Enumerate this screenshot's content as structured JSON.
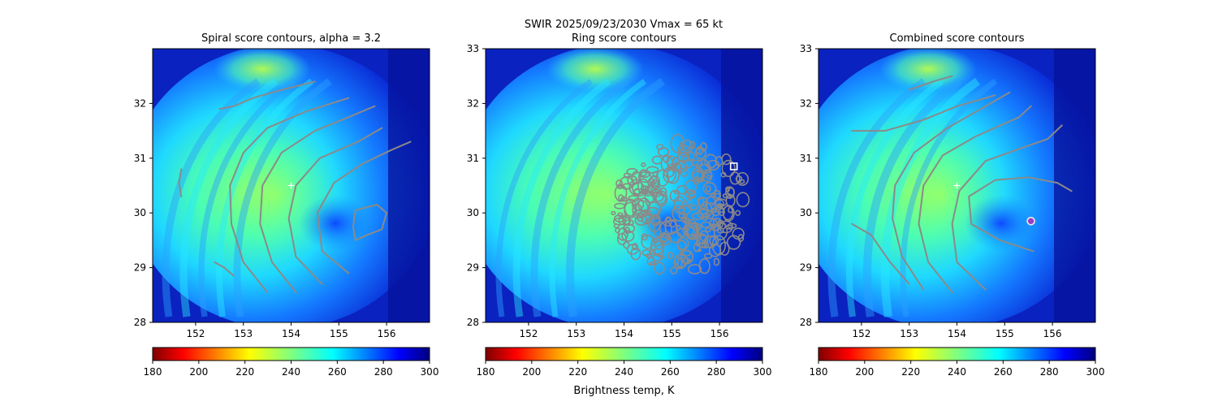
{
  "figure": {
    "suptitle": "SWIR  2025/09/23/2030    Vmax = 65 kt",
    "colorbar_label": "Brightness temp, K"
  },
  "chart_data": [
    {
      "type": "heatmap",
      "title": "Spiral score contours, alpha =  3.2",
      "xlim": [
        151.1,
        156.9
      ],
      "ylim": [
        28,
        33
      ],
      "xticks": [
        152,
        153,
        154,
        155,
        156
      ],
      "yticks": [
        28,
        29,
        30,
        31,
        32
      ],
      "colorbar": {
        "cmap": "jet_r",
        "range": [
          180,
          300
        ],
        "ticks": [
          180,
          200,
          220,
          240,
          260,
          280,
          300
        ]
      },
      "center_marker": {
        "symbol": "+",
        "lon": 154.0,
        "lat": 30.5
      },
      "contours": [
        [
          [
            153.5,
            28.55
          ],
          [
            153.0,
            29.1
          ],
          [
            152.75,
            29.8
          ],
          [
            152.72,
            30.5
          ],
          [
            153.0,
            31.1
          ],
          [
            153.5,
            31.55
          ],
          [
            154.3,
            31.85
          ],
          [
            155.2,
            32.1
          ]
        ],
        [
          [
            154.1,
            28.55
          ],
          [
            153.6,
            29.1
          ],
          [
            153.35,
            29.8
          ],
          [
            153.4,
            30.5
          ],
          [
            153.8,
            31.1
          ],
          [
            154.5,
            31.5
          ],
          [
            155.2,
            31.75
          ],
          [
            155.75,
            31.95
          ]
        ],
        [
          [
            154.65,
            28.7
          ],
          [
            154.1,
            29.2
          ],
          [
            153.95,
            29.9
          ],
          [
            154.1,
            30.5
          ],
          [
            154.6,
            31.0
          ],
          [
            155.4,
            31.3
          ],
          [
            155.9,
            31.55
          ]
        ],
        [
          [
            155.2,
            28.9
          ],
          [
            154.65,
            29.3
          ],
          [
            154.55,
            30.0
          ],
          [
            154.9,
            30.55
          ],
          [
            155.5,
            30.9
          ],
          [
            156.1,
            31.15
          ],
          [
            156.5,
            31.3
          ]
        ],
        [
          [
            155.35,
            29.5
          ],
          [
            155.6,
            29.6
          ],
          [
            155.9,
            29.7
          ],
          [
            156.0,
            30.0
          ],
          [
            155.8,
            30.15
          ],
          [
            155.35,
            30.05
          ],
          [
            155.3,
            29.75
          ],
          [
            155.35,
            29.5
          ]
        ],
        [
          [
            151.7,
            30.3
          ],
          [
            151.65,
            30.55
          ],
          [
            151.7,
            30.8
          ]
        ],
        [
          [
            152.4,
            29.1
          ],
          [
            152.6,
            29.0
          ],
          [
            152.8,
            28.85
          ]
        ],
        [
          [
            152.5,
            31.9
          ],
          [
            152.8,
            31.95
          ],
          [
            153.2,
            32.1
          ],
          [
            153.8,
            32.25
          ],
          [
            154.5,
            32.4
          ]
        ]
      ]
    },
    {
      "type": "heatmap",
      "title": "Ring score contours",
      "xlim": [
        151.1,
        156.9
      ],
      "ylim": [
        28,
        33
      ],
      "xticks": [
        152,
        153,
        154,
        155,
        156
      ],
      "yticks": [
        28,
        29,
        30,
        31,
        32,
        33
      ],
      "colorbar": {
        "cmap": "jet_r",
        "range": [
          180,
          300
        ],
        "ticks": [
          180,
          200,
          220,
          240,
          260,
          280,
          300
        ]
      },
      "ring_region": {
        "center_lon": 155.2,
        "center_lat": 30.1,
        "radius_lon": 1.45,
        "radius_lat": 1.2
      },
      "max_marker": {
        "symbol": "square",
        "lon": 156.3,
        "lat": 30.85
      }
    },
    {
      "type": "heatmap",
      "title": "Combined score contours",
      "xlim": [
        151.1,
        156.9
      ],
      "ylim": [
        28,
        33
      ],
      "xticks": [
        152,
        153,
        154,
        155,
        156
      ],
      "yticks": [
        28,
        29,
        30,
        31,
        32,
        33
      ],
      "colorbar": {
        "cmap": "jet_r",
        "range": [
          180,
          300
        ],
        "ticks": [
          180,
          200,
          220,
          240,
          260,
          280,
          300
        ]
      },
      "center_marker": {
        "symbol": "+",
        "lon": 154.0,
        "lat": 30.5
      },
      "max_marker": {
        "symbol": "circle",
        "lon": 155.55,
        "lat": 29.85
      },
      "contours": [
        [
          [
            153.3,
            28.6
          ],
          [
            152.85,
            29.2
          ],
          [
            152.65,
            29.9
          ],
          [
            152.7,
            30.5
          ],
          [
            153.1,
            31.1
          ],
          [
            153.8,
            31.55
          ],
          [
            154.6,
            31.95
          ],
          [
            155.1,
            32.2
          ]
        ],
        [
          [
            153.9,
            28.55
          ],
          [
            153.4,
            29.1
          ],
          [
            153.2,
            29.8
          ],
          [
            153.3,
            30.5
          ],
          [
            153.7,
            31.05
          ],
          [
            154.4,
            31.4
          ],
          [
            155.3,
            31.75
          ],
          [
            155.55,
            31.95
          ]
        ],
        [
          [
            154.6,
            28.6
          ],
          [
            154.0,
            29.1
          ],
          [
            153.9,
            29.8
          ],
          [
            154.05,
            30.4
          ],
          [
            154.6,
            30.95
          ],
          [
            155.4,
            31.2
          ],
          [
            155.9,
            31.35
          ],
          [
            156.2,
            31.6
          ]
        ],
        [
          [
            155.6,
            29.3
          ],
          [
            154.9,
            29.5
          ],
          [
            154.3,
            29.8
          ],
          [
            154.25,
            30.3
          ],
          [
            154.8,
            30.6
          ],
          [
            155.5,
            30.65
          ],
          [
            156.1,
            30.55
          ],
          [
            156.4,
            30.4
          ]
        ],
        [
          [
            151.8,
            31.5
          ],
          [
            152.5,
            31.5
          ],
          [
            153.3,
            31.7
          ],
          [
            154.0,
            31.95
          ],
          [
            154.8,
            32.15
          ]
        ],
        [
          [
            151.8,
            29.8
          ],
          [
            152.2,
            29.6
          ],
          [
            152.6,
            29.1
          ],
          [
            153.0,
            28.7
          ]
        ],
        [
          [
            153.0,
            32.25
          ],
          [
            153.5,
            32.4
          ],
          [
            153.9,
            32.5
          ]
        ]
      ]
    }
  ]
}
